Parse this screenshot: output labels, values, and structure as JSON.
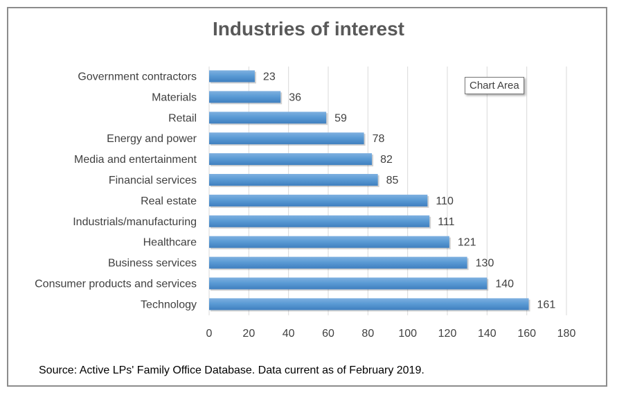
{
  "chart_data": {
    "type": "bar",
    "orientation": "horizontal",
    "title": "Industries of interest",
    "categories": [
      "Government contractors",
      "Materials",
      "Retail",
      "Energy and power",
      "Media and entertainment",
      "Financial services",
      "Real estate",
      "Industrials/manufacturing",
      "Healthcare",
      "Business services",
      "Consumer products and services",
      "Technology"
    ],
    "values": [
      23,
      36,
      59,
      78,
      82,
      85,
      110,
      111,
      121,
      130,
      140,
      161
    ],
    "xlim": [
      0,
      180
    ],
    "xticks": [
      0,
      20,
      40,
      60,
      80,
      100,
      120,
      140,
      160,
      180
    ],
    "grid": "vertical",
    "data_labels": true,
    "bar_color": "#5b9bd5"
  },
  "tooltip": {
    "label": "Chart Area"
  },
  "source": "Source: Active LPs' Family Office Database. Data current as of February 2019.",
  "colors": {
    "frame": "#8c8c8c",
    "text": "#404040",
    "grid": "#d9d9d9",
    "bar": "#5b9bd5"
  }
}
